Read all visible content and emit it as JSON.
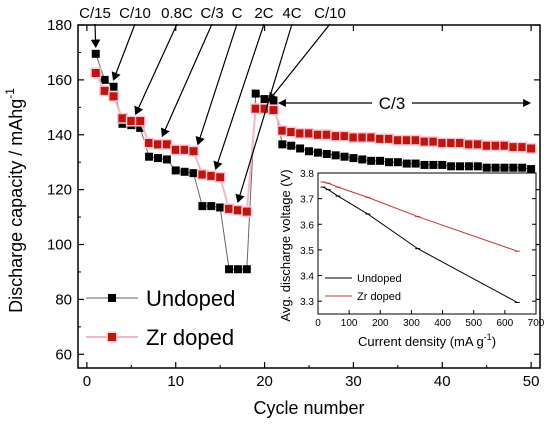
{
  "chart_data": [
    {
      "type": "scatter",
      "title": "",
      "xlabel": "Cycle number",
      "ylabel_main": "Discharge capacity / mAhg",
      "ylabel_sup": "-1",
      "xlim": [
        -1,
        51
      ],
      "ylim": [
        55,
        180
      ],
      "xticks": [
        0,
        10,
        20,
        30,
        40,
        50
      ],
      "yticks": [
        60,
        80,
        100,
        120,
        140,
        160,
        180
      ],
      "legend_position": "lower-left",
      "grid": false,
      "series": [
        {
          "name": "Undoped",
          "marker": "square",
          "color": "#000000",
          "x": [
            1,
            2,
            3,
            4,
            5,
            6,
            7,
            8,
            9,
            10,
            11,
            12,
            13,
            14,
            15,
            16,
            17,
            18,
            19,
            20,
            21,
            22,
            23,
            24,
            25,
            26,
            27,
            28,
            29,
            30,
            31,
            32,
            33,
            34,
            35,
            36,
            37,
            38,
            39,
            40,
            41,
            42,
            43,
            44,
            45,
            46,
            47,
            48,
            49,
            50
          ],
          "values": [
            169.5,
            160,
            157.5,
            144,
            143.5,
            142.5,
            132,
            131.5,
            131,
            127,
            126.5,
            126,
            114,
            114,
            113.5,
            91,
            91,
            91,
            155,
            153,
            152.5,
            136.5,
            136,
            135,
            134,
            133.5,
            133,
            132.5,
            132,
            131.5,
            131,
            130.5,
            130.5,
            130,
            130,
            129.5,
            129.5,
            129,
            129,
            129,
            128.5,
            128.5,
            128.5,
            128.5,
            128,
            128,
            128,
            128,
            128,
            127.5
          ]
        },
        {
          "name": "Zr doped",
          "marker": "square",
          "color": "#c0140c",
          "x": [
            1,
            2,
            3,
            4,
            5,
            6,
            7,
            8,
            9,
            10,
            11,
            12,
            13,
            14,
            15,
            16,
            17,
            18,
            19,
            20,
            21,
            22,
            23,
            24,
            25,
            26,
            27,
            28,
            29,
            30,
            31,
            32,
            33,
            34,
            35,
            36,
            37,
            38,
            39,
            40,
            41,
            42,
            43,
            44,
            45,
            46,
            47,
            48,
            49,
            50
          ],
          "values": [
            162.5,
            156,
            154,
            146,
            145,
            145,
            137,
            136.5,
            136.5,
            134.5,
            134.5,
            134,
            125.5,
            125,
            124.5,
            113,
            112.5,
            112,
            149.5,
            149.5,
            149,
            141.5,
            141,
            140.5,
            140.5,
            140,
            140,
            139.5,
            139.5,
            139,
            139,
            139,
            138.5,
            138.5,
            138,
            138,
            138,
            137.5,
            137.5,
            137,
            137,
            137,
            136.5,
            136.5,
            136,
            136,
            136,
            135.5,
            135.5,
            135
          ]
        }
      ],
      "annotations": [
        {
          "text": "C/15",
          "target": [
            1,
            169.5
          ]
        },
        {
          "text": "C/10",
          "target": [
            3,
            157.5
          ]
        },
        {
          "text": "0.8C",
          "target": [
            5.5,
            145
          ]
        },
        {
          "text": "C/3",
          "target": [
            8.5,
            137
          ]
        },
        {
          "text": "C",
          "target": [
            12.5,
            134
          ]
        },
        {
          "text": "2C",
          "target": [
            14.5,
            125
          ]
        },
        {
          "text": "4C",
          "target": [
            17,
            113
          ]
        },
        {
          "text": "C/10",
          "target": [
            20.5,
            150
          ]
        },
        {
          "text": "C/3",
          "span": [
            21.5,
            50
          ]
        }
      ]
    },
    {
      "type": "line",
      "title": "",
      "xlabel_main": "Current density (mA g",
      "xlabel_sup": "-1",
      "xlabel_close": ")",
      "ylabel": "Avg. discharge voltage (V)",
      "xlim": [
        0,
        700
      ],
      "ylim": [
        3.25,
        3.8
      ],
      "xticks": [
        0,
        100,
        200,
        300,
        400,
        500,
        600,
        700
      ],
      "yticks": [
        3.3,
        3.4,
        3.5,
        3.6,
        3.7,
        3.8
      ],
      "legend_position": "lower-left",
      "series": [
        {
          "name": "Undoped",
          "color": "#000000",
          "x": [
            16,
            33,
            64,
            160,
            320,
            640
          ],
          "values": [
            3.745,
            3.735,
            3.71,
            3.64,
            3.505,
            3.295
          ]
        },
        {
          "name": "Zr doped",
          "color": "#c0392b",
          "x": [
            16,
            33,
            64,
            160,
            320,
            640
          ],
          "values": [
            3.765,
            3.76,
            3.745,
            3.705,
            3.63,
            3.495
          ]
        }
      ]
    }
  ]
}
